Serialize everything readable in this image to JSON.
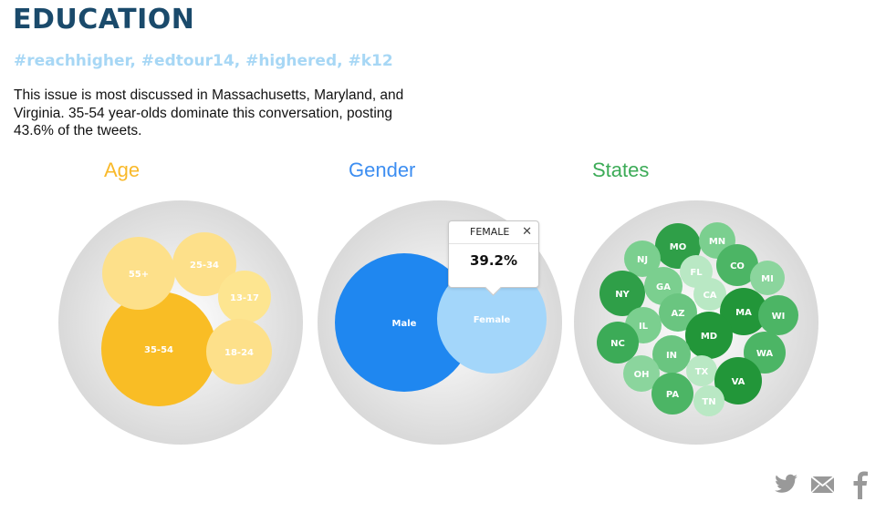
{
  "header": {
    "title": "EDUCATION",
    "hashtags": "#reachhigher, #edtour14, #highered, #k12",
    "description": "This issue is most discussed in Massachusetts, Maryland, and Virginia. 35-54 year-olds dominate this conversation, posting 43.6% of the tweets."
  },
  "colors": {
    "title": "#1a4a6b",
    "hashtags": "#a7d7f5",
    "age": "#f9b92a",
    "gender": "#3d8ef1",
    "states": "#3cab57"
  },
  "sections": {
    "age_title": "Age",
    "gender_title": "Gender",
    "states_title": "States"
  },
  "tooltip": {
    "label": "FEMALE",
    "value": "39.2%",
    "close_icon": "close-icon"
  },
  "share": {
    "icons": [
      "twitter-icon",
      "email-icon",
      "facebook-icon"
    ]
  },
  "chart_data": [
    {
      "type": "bubble",
      "title": "Age",
      "bubbles": [
        {
          "label": "35-54",
          "share": 43.6
        },
        {
          "label": "55+"
        },
        {
          "label": "25-34"
        },
        {
          "label": "13-17"
        },
        {
          "label": "18-24"
        }
      ]
    },
    {
      "type": "bubble",
      "title": "Gender",
      "bubbles": [
        {
          "label": "Male"
        },
        {
          "label": "Female",
          "share": 39.2
        }
      ]
    },
    {
      "type": "bubble",
      "title": "States",
      "bubbles": [
        {
          "label": "MO"
        },
        {
          "label": "MN"
        },
        {
          "label": "NJ"
        },
        {
          "label": "FL"
        },
        {
          "label": "CO"
        },
        {
          "label": "MI"
        },
        {
          "label": "NY"
        },
        {
          "label": "GA"
        },
        {
          "label": "CA"
        },
        {
          "label": "AZ"
        },
        {
          "label": "MA"
        },
        {
          "label": "WI"
        },
        {
          "label": "IL"
        },
        {
          "label": "MD"
        },
        {
          "label": "NC"
        },
        {
          "label": "IN"
        },
        {
          "label": "WA"
        },
        {
          "label": "OH"
        },
        {
          "label": "TX"
        },
        {
          "label": "VA"
        },
        {
          "label": "PA"
        },
        {
          "label": "TN"
        }
      ]
    }
  ]
}
